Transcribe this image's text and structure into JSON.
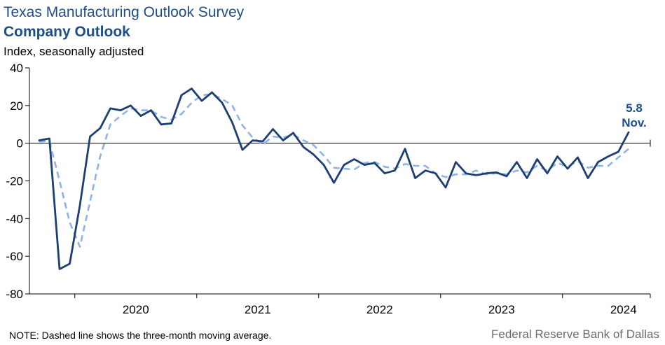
{
  "header": {
    "title": "Texas Manufacturing Outlook Survey",
    "subtitle": "Company Outlook",
    "units": "Index, seasonally adjusted"
  },
  "footer": {
    "note": "NOTE: Dashed line shows the three-month  moving average.",
    "source": "Federal Reserve Bank of Dallas"
  },
  "chart_data": {
    "type": "line",
    "start": "2019-09",
    "x_ticks": [
      "2020",
      "2021",
      "2022",
      "2023",
      "2024"
    ],
    "y_ticks": [
      "40",
      "20",
      "0",
      "-20",
      "-40",
      "-60",
      "-80"
    ],
    "ylim": [
      -80,
      40
    ],
    "colors": {
      "actual": "#1d3f73",
      "moving_average": "#8fb4e3"
    },
    "series": [
      {
        "name": "",
        "style": "solid",
        "values": [
          1.5,
          2.5,
          -66.8,
          -64.0,
          -33.0,
          3.5,
          8.0,
          18.5,
          17.5,
          20.0,
          14.5,
          17.5,
          10.0,
          10.5,
          25.5,
          29.0,
          22.5,
          27.0,
          21.5,
          11.0,
          -3.5,
          1.5,
          1.0,
          7.5,
          1.5,
          5.5,
          -2.0,
          -6.0,
          -11.5,
          -21.0,
          -11.5,
          -8.5,
          -11.5,
          -10.5,
          -16.0,
          -14.5,
          -3.0,
          -18.5,
          -14.5,
          -16.0,
          -23.5,
          -10.0,
          -16.0,
          -17.0,
          -16.0,
          -15.5,
          -17.5,
          -10.0,
          -18.5,
          -8.5,
          -16.0,
          -7.0,
          -13.5,
          -7.5,
          -18.5,
          -10.0,
          -7.0,
          -4.5,
          5.8
        ]
      },
      {
        "name": "",
        "style": "dashed",
        "values": [
          0.8,
          1.2,
          -20.0,
          -42.0,
          -55.0,
          -31.0,
          -7.0,
          10.0,
          14.5,
          18.5,
          17.5,
          17.5,
          14.0,
          12.5,
          15.5,
          21.5,
          25.5,
          26.0,
          23.5,
          20.0,
          9.5,
          3.0,
          -0.5,
          3.5,
          3.0,
          4.5,
          1.5,
          -1.0,
          -6.5,
          -13.0,
          -13.5,
          -14.0,
          -10.5,
          -10.0,
          -12.5,
          -13.5,
          -11.0,
          -12.0,
          -12.0,
          -16.0,
          -18.0,
          -16.5,
          -16.5,
          -14.5,
          -16.5,
          -16.0,
          -16.5,
          -14.5,
          -15.5,
          -12.0,
          -14.5,
          -10.5,
          -12.5,
          -9.5,
          -13.0,
          -12.0,
          -12.0,
          -7.5,
          -3.0
        ]
      }
    ],
    "annotation": {
      "value": "5.8",
      "label": "Nov."
    }
  }
}
